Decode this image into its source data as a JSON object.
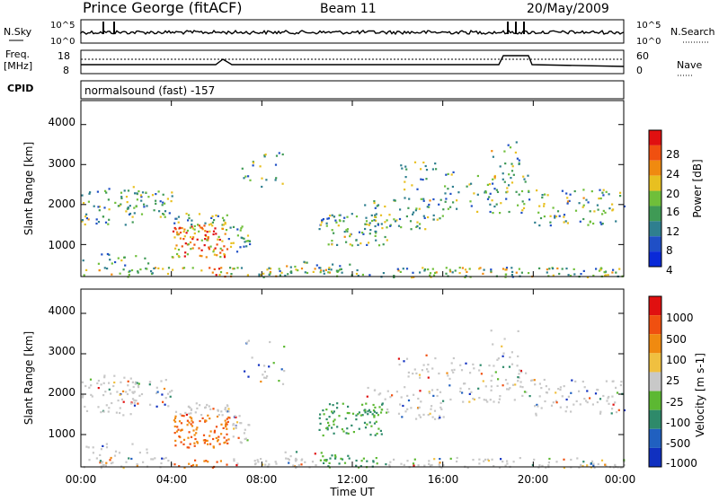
{
  "header": {
    "station": "Prince George (fitACF)",
    "beam": "Beam 11",
    "date": "20/May/2009"
  },
  "strips": {
    "nsky_label": "N.Sky",
    "nsearch_label": "N.Search",
    "nsky_ticks": [
      "10^5",
      "10^0"
    ],
    "nsearch_ticks": [
      "10^5",
      "10^0"
    ],
    "freq_label_line1": "Freq.",
    "freq_label_line2": "[MHz]",
    "freq_ticks": [
      "18",
      "8"
    ],
    "nave_label": "Nave",
    "nave_ticks": [
      "60",
      "0"
    ],
    "cpid_label": "CPID",
    "cpid_text": "normalsound (fast) -157"
  },
  "colors": {
    "power": [
      "#0a2ad8",
      "#1f4fc6",
      "#2f7f8f",
      "#3f9a55",
      "#6fbf3a",
      "#e8c020",
      "#f08a10",
      "#f05010",
      "#e01010"
    ],
    "velocity": [
      "#1030c0",
      "#2060c0",
      "#2e8a6a",
      "#5cb832",
      "#c8c8c8",
      "#f0c040",
      "#f08a10",
      "#f05010",
      "#e01010"
    ]
  },
  "chart_data": [
    {
      "type": "heatmap",
      "panel": "power",
      "ylabel": "Slant Range [km]",
      "yticks": [
        "4000",
        "3000",
        "2000",
        "1000"
      ],
      "ylim": [
        200,
        4600
      ],
      "colorbar_label": "Power [dB]",
      "colorbar_ticks": [
        "28",
        "24",
        "20",
        "16",
        "12",
        "8",
        "4"
      ],
      "clim": [
        0,
        30
      ]
    },
    {
      "type": "heatmap",
      "panel": "velocity",
      "ylabel": "Slant Range [km]",
      "yticks": [
        "4000",
        "3000",
        "2000",
        "1000"
      ],
      "ylim": [
        200,
        4600
      ],
      "colorbar_label": "Velocity [m s-1]",
      "colorbar_ticks": [
        "1000",
        "500",
        "100",
        "25",
        "-25",
        "-100",
        "-500",
        "-1000"
      ],
      "xlabel": "Time UT",
      "xticks": [
        "00:00",
        "04:00",
        "08:00",
        "12:00",
        "16:00",
        "20:00",
        "00:00"
      ],
      "xlim": [
        "00:00",
        "24:00"
      ]
    }
  ]
}
